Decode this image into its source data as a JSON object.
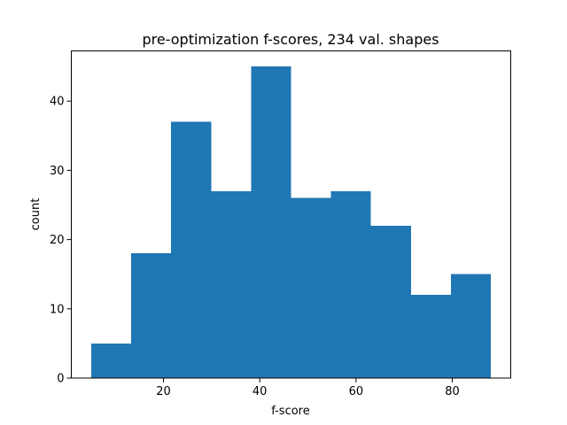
{
  "chart_data": {
    "type": "bar",
    "title": "pre-optimization f-scores, 234 val. shapes",
    "xlabel": "f-score",
    "ylabel": "count",
    "bins": [
      {
        "start": 5.0,
        "end": 13.3,
        "count": 5
      },
      {
        "start": 13.3,
        "end": 21.6,
        "count": 18
      },
      {
        "start": 21.6,
        "end": 29.9,
        "count": 37
      },
      {
        "start": 29.9,
        "end": 38.2,
        "count": 27
      },
      {
        "start": 38.2,
        "end": 46.5,
        "count": 45
      },
      {
        "start": 46.5,
        "end": 54.8,
        "count": 26
      },
      {
        "start": 54.8,
        "end": 63.1,
        "count": 27
      },
      {
        "start": 63.1,
        "end": 71.4,
        "count": 22
      },
      {
        "start": 71.4,
        "end": 79.7,
        "count": 12
      },
      {
        "start": 79.7,
        "end": 88.0,
        "count": 15
      }
    ],
    "xlim": [
      0.85,
      92.15
    ],
    "ylim": [
      0,
      47.25
    ],
    "xticks": [
      20,
      40,
      60,
      80
    ],
    "yticks": [
      0,
      10,
      20,
      30,
      40
    ],
    "bar_color": "#1f77b4",
    "grid": false,
    "legend": "none"
  }
}
